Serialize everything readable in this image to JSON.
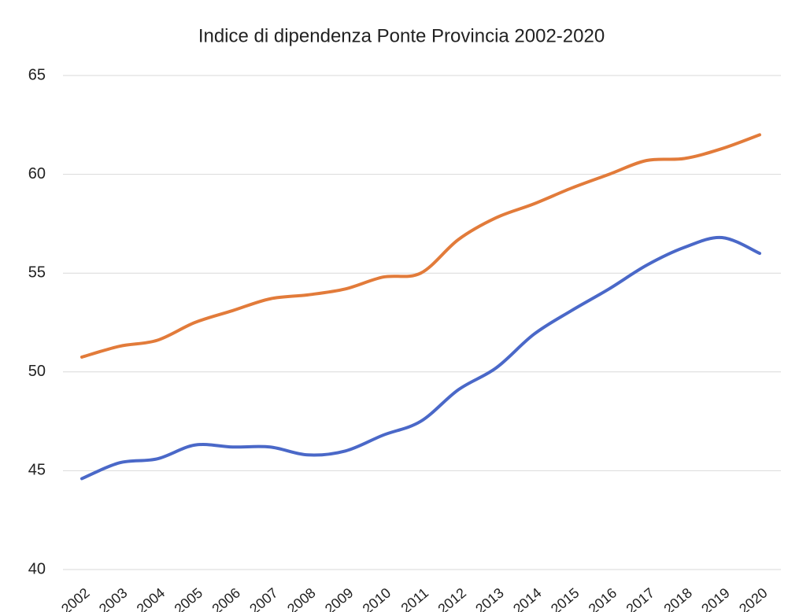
{
  "chart_data": {
    "type": "line",
    "title": "Indice di dipendenza Ponte Provincia 2002-2020",
    "categories": [
      "2002",
      "2003",
      "2004",
      "2005",
      "2006",
      "2007",
      "2008",
      "2009",
      "2010",
      "2011",
      "2012",
      "2013",
      "2014",
      "2015",
      "2016",
      "2017",
      "2018",
      "2019",
      "2020"
    ],
    "series": [
      {
        "color": "#e27b3a",
        "values": [
          50.75,
          51.3,
          51.6,
          52.5,
          53.1,
          53.7,
          53.9,
          54.2,
          54.8,
          55.0,
          56.7,
          57.8,
          58.5,
          59.3,
          60.0,
          60.7,
          60.8,
          61.3,
          62.0
        ]
      },
      {
        "color": "#4a68c8",
        "values": [
          44.6,
          45.4,
          45.6,
          46.3,
          46.2,
          46.2,
          45.8,
          46.0,
          46.8,
          47.5,
          49.1,
          50.2,
          51.9,
          53.1,
          54.2,
          55.4,
          56.3,
          56.8,
          56.0
        ]
      }
    ],
    "ylim": [
      40,
      65
    ],
    "yticks": [
      40,
      45,
      50,
      55,
      60,
      65
    ],
    "grid": true
  }
}
